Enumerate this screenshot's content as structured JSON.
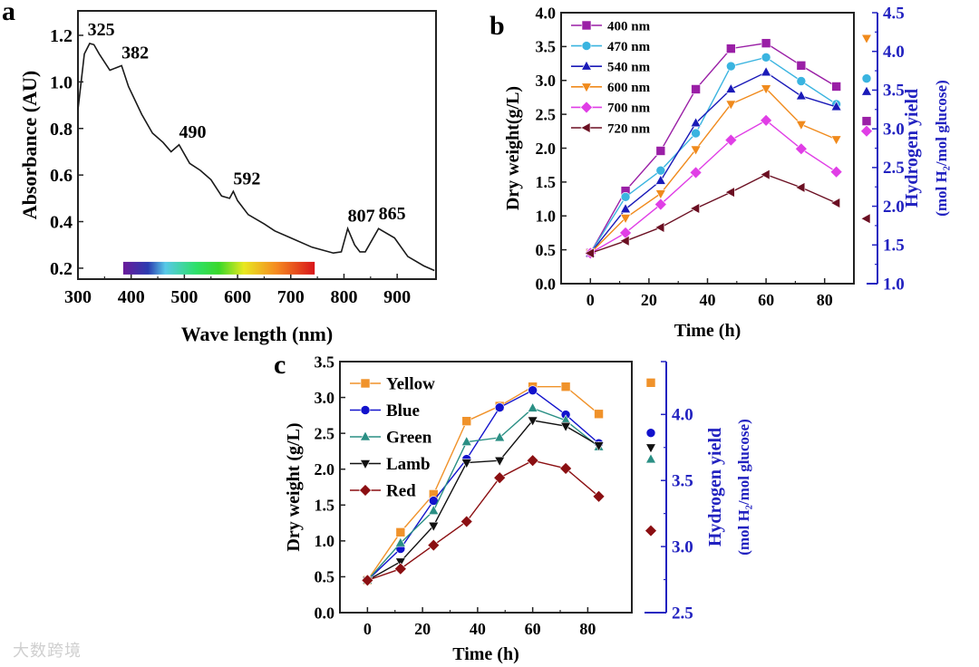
{
  "watermark": "大数跨境",
  "chart_data": [
    {
      "panel": "a",
      "type": "line",
      "xlabel": "Wave length (nm)",
      "ylabel": "Absorbance (AU)",
      "xlim": [
        300,
        973
      ],
      "ylim": [
        0.153,
        1.305
      ],
      "xticks": [
        300,
        400,
        500,
        600,
        700,
        800,
        900
      ],
      "yticks": [
        0.2,
        0.4,
        0.6,
        0.8,
        1.0,
        1.2
      ],
      "series": [
        {
          "name": "Absorbance",
          "color": "#1a1a1a",
          "x": [
            300,
            312,
            322,
            330,
            340,
            360,
            382,
            395,
            420,
            440,
            460,
            475,
            490,
            510,
            530,
            550,
            570,
            585,
            592,
            600,
            620,
            650,
            670,
            700,
            740,
            780,
            795,
            807,
            820,
            830,
            840,
            865,
            895,
            920,
            950,
            970
          ],
          "y": [
            0.88,
            1.12,
            1.165,
            1.16,
            1.12,
            1.05,
            1.07,
            0.98,
            0.86,
            0.78,
            0.74,
            0.7,
            0.73,
            0.65,
            0.62,
            0.58,
            0.51,
            0.5,
            0.53,
            0.49,
            0.43,
            0.39,
            0.36,
            0.33,
            0.29,
            0.265,
            0.27,
            0.37,
            0.3,
            0.27,
            0.27,
            0.37,
            0.33,
            0.25,
            0.21,
            0.19
          ]
        }
      ],
      "annotations": [
        {
          "text": "325",
          "x": 325,
          "y": 1.2
        },
        {
          "text": "382",
          "x": 382,
          "y": 1.1
        },
        {
          "text": "490",
          "x": 490,
          "y": 0.76
        },
        {
          "text": "592",
          "x": 592,
          "y": 0.56
        },
        {
          "text": "807",
          "x": 807,
          "y": 0.4
        },
        {
          "text": "865",
          "x": 865,
          "y": 0.41
        }
      ],
      "spectrum_bar": {
        "from": 385,
        "to": 745,
        "y": 0.2
      }
    },
    {
      "panel": "b",
      "type": "line",
      "xlabel": "Time (h)",
      "ylabel": "Dry weight(g/L)",
      "y2label": [
        "Hydrogen yield",
        "(mol H₂/mol glucose)"
      ],
      "xlim": [
        -10,
        90
      ],
      "ylim": [
        0,
        4
      ],
      "y2lim": [
        1.0,
        4.5
      ],
      "xticks": [
        0,
        20,
        40,
        60,
        80
      ],
      "yticks": [
        0.0,
        0.5,
        1.0,
        1.5,
        2.0,
        2.5,
        3.0,
        3.5,
        4.0
      ],
      "y2ticks": [
        1.0,
        1.5,
        2.0,
        2.5,
        3.0,
        3.5,
        4.0,
        4.5
      ],
      "legend": "top-left",
      "x": [
        0,
        12,
        24,
        36,
        48,
        60,
        72,
        84
      ],
      "series": [
        {
          "name": "400 nm",
          "color": "#9a1fa6",
          "marker": "square",
          "values": [
            0.45,
            1.37,
            1.96,
            2.87,
            3.47,
            3.55,
            3.22,
            2.91
          ],
          "hydrogen_yield": 3.1
        },
        {
          "name": "470 nm",
          "color": "#3ab4e0",
          "marker": "circle",
          "values": [
            0.45,
            1.28,
            1.67,
            2.22,
            3.21,
            3.34,
            2.99,
            2.65
          ],
          "hydrogen_yield": 3.65
        },
        {
          "name": "540 nm",
          "color": "#1a1ab8",
          "marker": "triangle-up",
          "values": [
            0.45,
            1.1,
            1.52,
            2.37,
            2.87,
            3.12,
            2.77,
            2.61
          ],
          "hydrogen_yield": 3.48
        },
        {
          "name": "600 nm",
          "color": "#f08a1c",
          "marker": "triangle-down",
          "values": [
            0.45,
            0.97,
            1.33,
            1.98,
            2.65,
            2.88,
            2.35,
            2.13
          ],
          "hydrogen_yield": 4.17
        },
        {
          "name": "700 nm",
          "color": "#e03ee6",
          "marker": "diamond",
          "values": [
            0.45,
            0.75,
            1.17,
            1.64,
            2.12,
            2.41,
            1.99,
            1.65
          ],
          "hydrogen_yield": 2.97
        },
        {
          "name": "720 nm",
          "color": "#6b0f22",
          "marker": "triangle-left",
          "values": [
            0.45,
            0.63,
            0.83,
            1.11,
            1.35,
            1.61,
            1.42,
            1.19
          ],
          "hydrogen_yield": 1.84
        }
      ]
    },
    {
      "panel": "c",
      "type": "line",
      "xlabel": "Time (h)",
      "ylabel": "Dry weight (g/L)",
      "y2label": [
        "Hydrogen yield",
        "(mol H₂/mol glucose)"
      ],
      "xlim": [
        -10,
        96
      ],
      "ylim": [
        0,
        3.5
      ],
      "y2lim": [
        2.5,
        4.4
      ],
      "xticks": [
        0,
        20,
        40,
        60,
        80
      ],
      "yticks": [
        0.0,
        0.5,
        1.0,
        1.5,
        2.0,
        2.5,
        3.0,
        3.5
      ],
      "y2ticks": [
        2.5,
        3.0,
        3.5,
        4.0
      ],
      "legend": "top-left",
      "x": [
        0,
        12,
        24,
        36,
        48,
        60,
        72,
        84
      ],
      "series": [
        {
          "name": "Yellow",
          "color": "#f0922a",
          "marker": "square",
          "values": [
            0.45,
            1.12,
            1.65,
            2.67,
            2.88,
            3.15,
            3.15,
            2.77
          ],
          "hydrogen_yield": 4.24
        },
        {
          "name": "Blue",
          "color": "#1212cc",
          "marker": "circle",
          "values": [
            0.45,
            0.89,
            1.56,
            2.14,
            2.86,
            3.1,
            2.76,
            2.36
          ],
          "hydrogen_yield": 3.86
        },
        {
          "name": "Green",
          "color": "#2a8f84",
          "marker": "triangle-up",
          "values": [
            0.45,
            0.97,
            1.42,
            2.38,
            2.44,
            2.85,
            2.68,
            2.31
          ],
          "hydrogen_yield": 3.66
        },
        {
          "name": "Lamb",
          "color": "#111111",
          "marker": "triangle-down",
          "values": [
            0.45,
            0.71,
            1.21,
            2.09,
            2.12,
            2.68,
            2.6,
            2.33
          ],
          "hydrogen_yield": 3.75
        },
        {
          "name": "Red",
          "color": "#8b0f12",
          "marker": "diamond",
          "values": [
            0.45,
            0.61,
            0.94,
            1.27,
            1.88,
            2.12,
            2.01,
            1.62
          ],
          "hydrogen_yield": 3.12
        }
      ]
    }
  ]
}
